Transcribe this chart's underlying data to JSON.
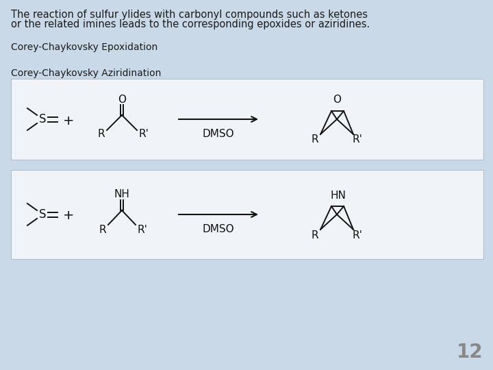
{
  "background_color": "#c9d9e8",
  "box_bg": "#f0f4f8",
  "title_text1": "The reaction of sulfur ylides with carbonyl compounds such as ketones",
  "title_text2": "or the related imines leads to the corresponding epoxides or aziridines.",
  "label1": "Corey-Chaykovsky Epoxidation",
  "label2": "Corey-Chaykovsky Aziridination",
  "page_number": "12",
  "text_color": "#1a1a1a",
  "gray_text": "#888888",
  "title_fontsize": 10.5,
  "label_fontsize": 10,
  "page_fontsize": 20,
  "struct_fontsize": 11,
  "dmso_fontsize": 11
}
